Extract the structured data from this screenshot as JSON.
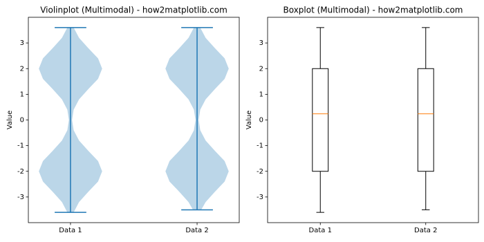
{
  "chart_data": [
    {
      "type": "violin",
      "title": "Violinplot (Multimodal) - how2matplotlib.com",
      "y_label": "Value",
      "categories": [
        "Data 1",
        "Data 2"
      ],
      "color": "#1f77b4",
      "ylim": [
        -4,
        4
      ],
      "yticks": [
        -3,
        -2,
        -1,
        0,
        1,
        2,
        3
      ],
      "series": [
        {
          "min": -3.6,
          "max": 3.6,
          "density_y": [
            -3.6,
            -3.2,
            -2.8,
            -2.4,
            -2.0,
            -1.6,
            -1.2,
            -0.8,
            -0.4,
            0,
            0.4,
            0.8,
            1.2,
            1.6,
            2.0,
            2.4,
            2.8,
            3.2,
            3.6
          ],
          "density": [
            0.1,
            0.27,
            0.56,
            0.87,
            1,
            0.87,
            0.56,
            0.27,
            0.1,
            0.05,
            0.1,
            0.27,
            0.56,
            0.87,
            1,
            0.87,
            0.56,
            0.27,
            0.1
          ]
        },
        {
          "min": -3.5,
          "max": 3.6,
          "density_y": [
            -3.5,
            -3.2,
            -2.8,
            -2.4,
            -2.0,
            -1.6,
            -1.2,
            -0.8,
            -0.4,
            0,
            0.4,
            0.8,
            1.2,
            1.6,
            2.0,
            2.4,
            2.8,
            3.2,
            3.6
          ],
          "density": [
            0.13,
            0.27,
            0.56,
            0.87,
            1,
            0.87,
            0.56,
            0.27,
            0.1,
            0.05,
            0.1,
            0.27,
            0.56,
            0.87,
            1,
            0.87,
            0.56,
            0.27,
            0.1
          ]
        }
      ]
    },
    {
      "type": "box",
      "title": "Boxplot (Multimodal) - how2matplotlib.com",
      "y_label": "Value",
      "categories": [
        "Data 1",
        "Data 2"
      ],
      "color": "#000000",
      "median_color": "#ff7f0e",
      "ylim": [
        -4,
        4
      ],
      "yticks": [
        -3,
        -2,
        -1,
        0,
        1,
        2,
        3
      ],
      "series": [
        {
          "min": -3.6,
          "q1": -2,
          "median": 0.24,
          "q3": 2,
          "max": 3.6
        },
        {
          "min": -3.5,
          "q1": -2,
          "median": 0.24,
          "q3": 2,
          "max": 3.6
        }
      ]
    }
  ]
}
